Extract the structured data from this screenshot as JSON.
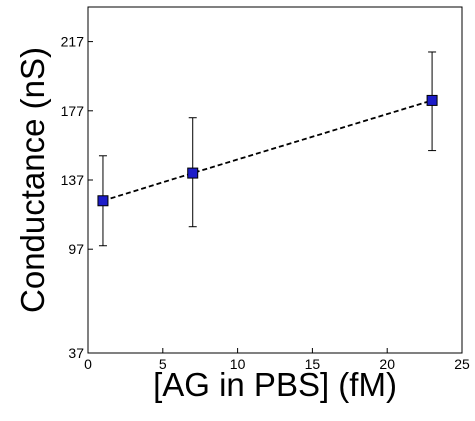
{
  "chart_data": {
    "type": "scatter",
    "title": "",
    "xlabel": "[AG in PBS] (fM)",
    "ylabel": "Conductance (nS)",
    "xlim": [
      0,
      25
    ],
    "ylim": [
      37,
      237
    ],
    "xticks": [
      0,
      5,
      10,
      15,
      20,
      25
    ],
    "yticks": [
      37,
      97,
      137,
      177,
      217
    ],
    "grid": false,
    "legend": "none",
    "line_style": "dashed",
    "marker": "square",
    "colors": {
      "marker_fill": "#1c1cc8",
      "marker_edge": "#000000",
      "line": "#000000",
      "errorbar": "#000000"
    },
    "series": [
      {
        "x": [
          1,
          7,
          23
        ],
        "y": [
          125,
          141,
          183
        ],
        "yerr_low": [
          99,
          110,
          154
        ],
        "yerr_high": [
          151,
          173,
          211
        ]
      }
    ]
  }
}
